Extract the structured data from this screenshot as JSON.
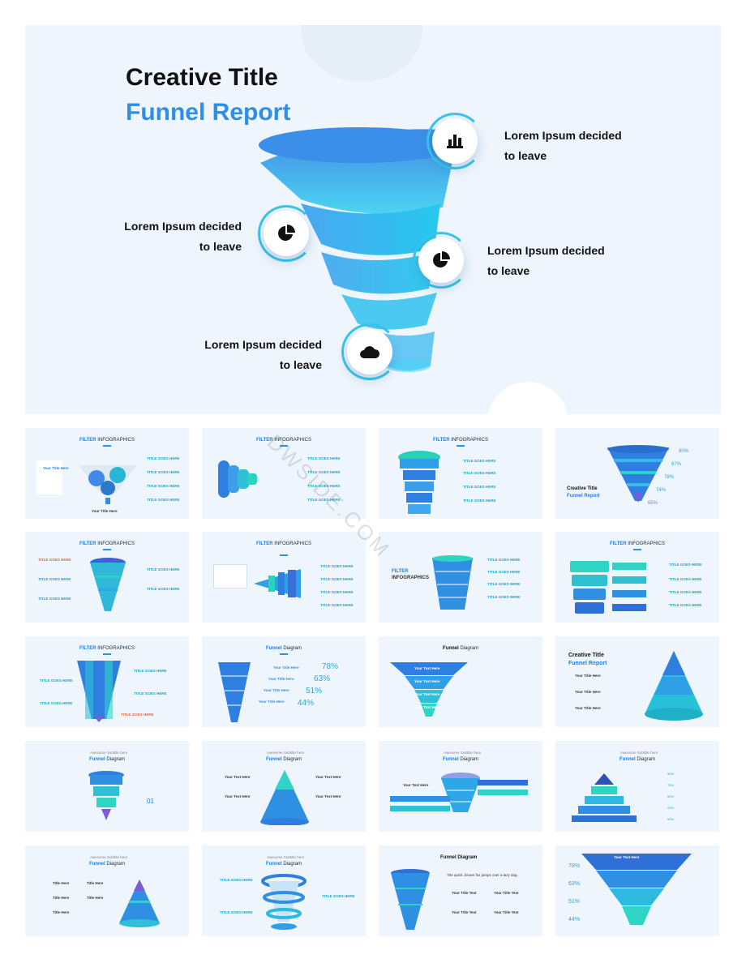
{
  "hero": {
    "title_line1": "Creative Title",
    "title_line2": "Funnel Report",
    "items": [
      {
        "label": "Lorem Ipsum decided\nto leave",
        "icon": "bar-chart-icon"
      },
      {
        "label": "Lorem Ipsum decided\nto leave",
        "icon": "pie-chart-icon"
      },
      {
        "label": "Lorem Ipsum decided\nto leave",
        "icon": "pie-chart-icon"
      },
      {
        "label": "Lorem Ipsum decided\nto leave",
        "icon": "cloud-icon"
      }
    ]
  },
  "watermark": "DWSIDE.COM",
  "thumbs": {
    "filter_strong": "FILTER",
    "filter_rest": " INFOGRAPHICS",
    "funnel_strong": "Funnel",
    "funnel_rest": " Diagram",
    "title_goes_here": "TITLE GOES HERE",
    "your_title_here": "Your Title Here",
    "your_title_text": "Your Title Text",
    "your_text_here": "Your Text Here",
    "title_here": "Title Here",
    "subtitle": "Awesome Subtitle here",
    "creative_title": "Creative Title",
    "funnel_report": "Funnel Report",
    "filter_word": "FILTER",
    "infographics_word": "INFOGRAPHICS",
    "slide4_pcts": [
      "90%",
      "87%",
      "78%",
      "74%",
      "65%"
    ],
    "slide10_pcts": [
      "78%",
      "63%",
      "51%",
      "44%"
    ],
    "slide24_pcts": [
      "78%",
      "63%",
      "51%",
      "44%"
    ],
    "slide20_pcts": [
      "90%",
      "75%",
      "50%",
      "25%",
      "00%"
    ],
    "slide17_number": "01",
    "quick_fox": "The quick, brown fox jumps over a lazy dog."
  },
  "colors": {
    "accent": "#2f8fe3",
    "teal": "#1ec6c0",
    "bg": "#eef5fc"
  }
}
